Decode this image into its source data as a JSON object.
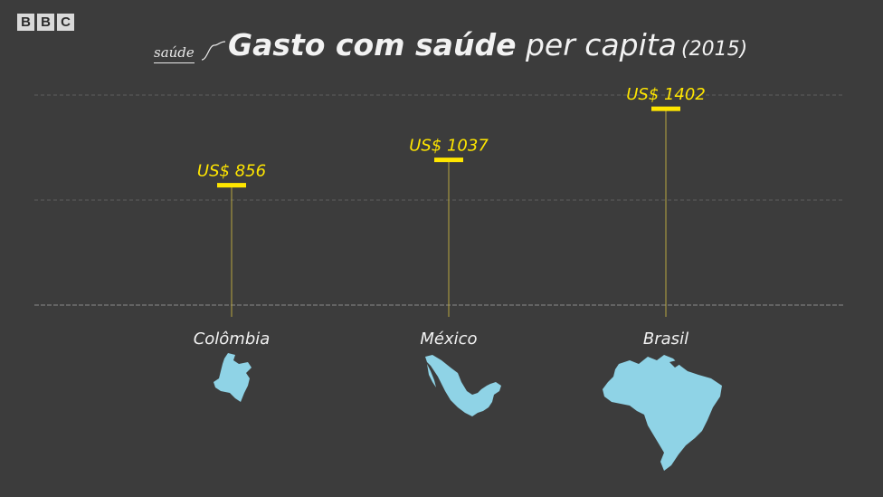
{
  "logo": [
    "B",
    "B",
    "C"
  ],
  "header": {
    "kicker": "saúde",
    "title_bold": "Gasto com saúde",
    "title_rest": " per capita",
    "title_year": "(2015)"
  },
  "chart_data": {
    "type": "bar",
    "categories": [
      "Colômbia",
      "México",
      "Brasil"
    ],
    "values": [
      856,
      1037,
      1402
    ],
    "value_labels": [
      "US$ 856",
      "US$ 1037",
      "US$ 1402"
    ],
    "title": "Gasto com saúde per capita (2015)",
    "ylim": [
      0,
      1500
    ],
    "grid": true
  },
  "colors": {
    "background": "#3c3c3c",
    "accent": "#ffe600",
    "map": "#8fd3e6",
    "text": "#f2f2f2"
  },
  "maps": {
    "colombia": "colombia-map-icon",
    "mexico": "mexico-map-icon",
    "brasil": "brazil-map-icon"
  }
}
